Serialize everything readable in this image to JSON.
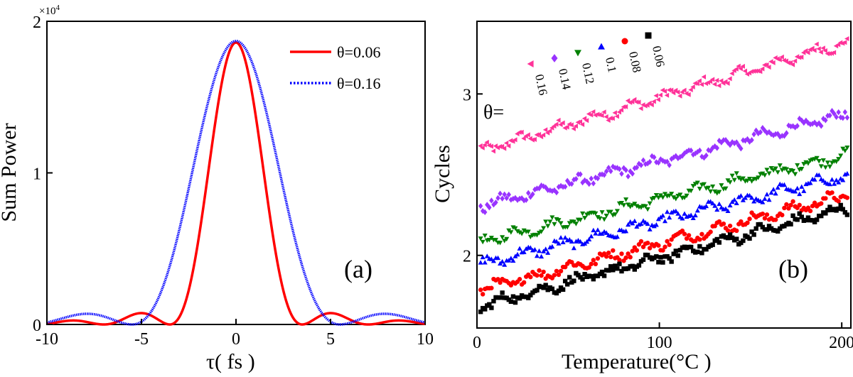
{
  "chart_data": [
    {
      "panel_label": "(a)",
      "type": "line",
      "xlabel": "τ( fs )",
      "ylabel": "Sum Power",
      "y_multiplier": "×10",
      "y_multiplier_exp": "4",
      "xlim": [
        -10,
        10
      ],
      "ylim": [
        0,
        2
      ],
      "xticks": [
        -10,
        -5,
        0,
        5,
        10
      ],
      "xtick_labels": [
        "-10",
        "-5",
        "0",
        "5",
        "10"
      ],
      "yticks": [
        0,
        1,
        2
      ],
      "ytick_labels": [
        "0",
        "1",
        "2"
      ],
      "legend_position": "top-right",
      "series": [
        {
          "name": "θ=0.06",
          "color": "#ff0000",
          "style": "solid",
          "peak": 1.86,
          "zeros_at": [
            -3.5,
            3.5
          ],
          "sidelobe_center": 5.3,
          "sidelobe_height": 0.07
        },
        {
          "name": "θ=0.16",
          "color": "#0000ff",
          "style": "dotted",
          "peak": 1.87,
          "zeros_at": [
            -5.5,
            5.5
          ],
          "sidelobe_center": 8.0,
          "sidelobe_height": 0.07
        }
      ]
    },
    {
      "panel_label": "(b)",
      "type": "scatter",
      "xlabel": "Temperature(°C )",
      "ylabel": "Cycles",
      "xlim": [
        0,
        205
      ],
      "ylim": [
        1.55,
        3.45
      ],
      "xticks": [
        0,
        100,
        200
      ],
      "xtick_labels": [
        "0",
        "100",
        "200"
      ],
      "yticks": [
        2,
        3
      ],
      "ytick_labels": [
        "2",
        "3"
      ],
      "legend_prefix": "θ=",
      "series": [
        {
          "name": "0.16",
          "color": "#ff3399",
          "marker": "triangle-left",
          "start": 2.64,
          "end": 3.33
        },
        {
          "name": "0.14",
          "color": "#9933ff",
          "marker": "diamond",
          "start": 2.3,
          "end": 2.88
        },
        {
          "name": "0.12",
          "color": "#008000",
          "marker": "triangle-down",
          "start": 2.08,
          "end": 2.63
        },
        {
          "name": "0.1",
          "color": "#0000ff",
          "marker": "triangle-up",
          "start": 1.94,
          "end": 2.5
        },
        {
          "name": "0.08",
          "color": "#ff0000",
          "marker": "circle",
          "start": 1.78,
          "end": 2.38
        },
        {
          "name": "0.06",
          "color": "#000000",
          "marker": "square",
          "start": 1.68,
          "end": 2.3
        }
      ]
    }
  ]
}
